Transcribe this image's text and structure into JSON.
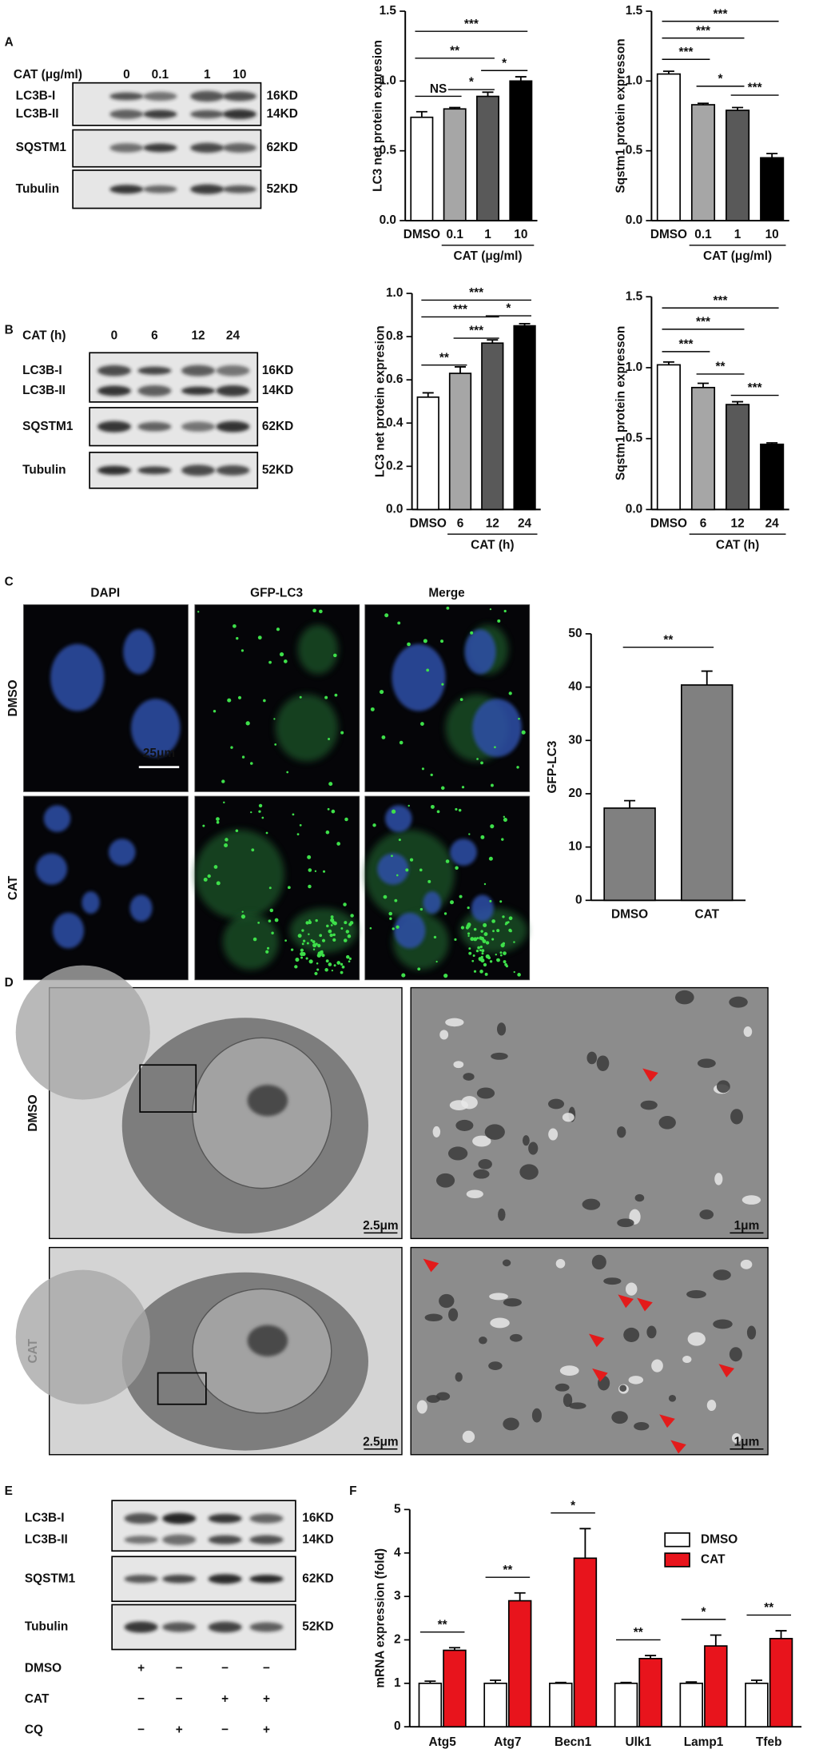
{
  "panel_labels": [
    "A",
    "B",
    "C",
    "D",
    "E",
    "F"
  ],
  "panel_a_blot": {
    "treatment_label": "CAT (μg/ml)",
    "lanes": [
      "0",
      "0.1",
      "1",
      "10"
    ],
    "rows": [
      {
        "labels": [
          "LC3B-I",
          "LC3B-II"
        ],
        "sizes": [
          "16KD",
          "14KD"
        ]
      },
      {
        "labels": [
          "SQSTM1"
        ],
        "sizes": [
          "62KD"
        ]
      },
      {
        "labels": [
          "Tubulin"
        ],
        "sizes": [
          "52KD"
        ]
      }
    ]
  },
  "panel_b_blot": {
    "treatment_label": "CAT (h)",
    "lanes": [
      "0",
      "6",
      "12",
      "24"
    ],
    "rows": [
      {
        "labels": [
          "LC3B-I",
          "LC3B-II"
        ],
        "sizes": [
          "16KD",
          "14KD"
        ]
      },
      {
        "labels": [
          "SQSTM1"
        ],
        "sizes": [
          "62KD"
        ]
      },
      {
        "labels": [
          "Tubulin"
        ],
        "sizes": [
          "52KD"
        ]
      }
    ]
  },
  "panel_c_images": {
    "columns": [
      "DAPI",
      "GFP-LC3",
      "Merge"
    ],
    "rows": [
      "DMSO",
      "CAT"
    ],
    "scale_bar": "25μm"
  },
  "panel_d_images": {
    "rows": [
      "DMSO",
      "CAT"
    ],
    "scale_bars": [
      "2.5μm",
      "1μm",
      "2.5μm",
      "1μm"
    ]
  },
  "panel_e_blot": {
    "rows": [
      {
        "labels": [
          "LC3B-I",
          "LC3B-II"
        ],
        "sizes": [
          "16KD",
          "14KD"
        ]
      },
      {
        "labels": [
          "SQSTM1"
        ],
        "sizes": [
          "62KD"
        ]
      },
      {
        "labels": [
          "Tubulin"
        ],
        "sizes": [
          "52KD"
        ]
      }
    ],
    "conditions": [
      {
        "name": "DMSO",
        "signs": [
          "+",
          "−",
          "−",
          "−"
        ]
      },
      {
        "name": "CAT",
        "signs": [
          "−",
          "−",
          "+",
          "+"
        ]
      },
      {
        "name": "CQ",
        "signs": [
          "−",
          "+",
          "−",
          "+"
        ]
      }
    ]
  },
  "chart_data": [
    {
      "type": "bar",
      "ylabel": "LC3 net protein expresion",
      "xlabel": "CAT (μg/ml)",
      "categories": [
        "DMSO",
        "0.1",
        "1",
        "10"
      ],
      "values": [
        0.74,
        0.8,
        0.89,
        1.0
      ],
      "errors": [
        0.04,
        0.01,
        0.03,
        0.03
      ],
      "colors": [
        "#ffffff",
        "#a6a6a6",
        "#595959",
        "#000000"
      ],
      "ylim": [
        0,
        1.5
      ],
      "yticks": [
        {
          "value": 0,
          "label": "0.0"
        },
        0.5,
        {
          "value": 1,
          "label": "1.0"
        },
        1.5
      ],
      "annotations": [
        "***",
        "**",
        "*",
        "*",
        "NS"
      ]
    },
    {
      "type": "bar",
      "ylabel": "Sqstm1 protein expresson",
      "xlabel": "CAT (μg/ml)",
      "categories": [
        "DMSO",
        "0.1",
        "1",
        "10"
      ],
      "values": [
        1.05,
        0.83,
        0.79,
        0.45
      ],
      "errors": [
        0.02,
        0.01,
        0.02,
        0.03
      ],
      "colors": [
        "#ffffff",
        "#a6a6a6",
        "#595959",
        "#000000"
      ],
      "ylim": [
        0,
        1.5
      ],
      "yticks": [
        {
          "value": 0,
          "label": "0.0"
        },
        0.5,
        {
          "value": 1,
          "label": "1.0"
        },
        1.5
      ],
      "annotations": [
        "***",
        "***",
        "***",
        "*",
        "***"
      ]
    },
    {
      "type": "bar",
      "ylabel": "LC3 net protein expresion",
      "xlabel": "CAT (h)",
      "categories": [
        "DMSO",
        "6",
        "12",
        "24"
      ],
      "values": [
        0.52,
        0.63,
        0.77,
        0.85
      ],
      "errors": [
        0.02,
        0.03,
        0.015,
        0.01
      ],
      "colors": [
        "#ffffff",
        "#a6a6a6",
        "#595959",
        "#000000"
      ],
      "ylim": [
        0,
        1
      ],
      "yticks": [
        {
          "value": 0,
          "label": "0.0"
        },
        0.2,
        0.4,
        0.6,
        0.8,
        {
          "value": 1,
          "label": "1.0"
        }
      ],
      "annotations": [
        "***",
        "***",
        "*",
        "***",
        "**"
      ]
    },
    {
      "type": "bar",
      "ylabel": "Sqstm1 protein expresson",
      "xlabel": "CAT (h)",
      "categories": [
        "DMSO",
        "6",
        "12",
        "24"
      ],
      "values": [
        1.02,
        0.86,
        0.74,
        0.46
      ],
      "errors": [
        0.02,
        0.03,
        0.02,
        0.01
      ],
      "colors": [
        "#ffffff",
        "#a6a6a6",
        "#595959",
        "#000000"
      ],
      "ylim": [
        0,
        1.5
      ],
      "yticks": [
        {
          "value": 0,
          "label": "0.0"
        },
        0.5,
        {
          "value": 1,
          "label": "1.0"
        },
        1.5
      ],
      "annotations": [
        "***",
        "***",
        "***",
        "**",
        "***"
      ]
    },
    {
      "type": "bar",
      "ylabel": "GFP-LC3",
      "categories": [
        "DMSO",
        "CAT"
      ],
      "values": [
        17.3,
        40.4
      ],
      "errors": [
        1.4,
        2.6
      ],
      "color": "#808080",
      "ylim": [
        0,
        50
      ],
      "yticks": [
        0,
        10,
        20,
        30,
        40,
        50
      ],
      "annotations": [
        "**"
      ]
    },
    {
      "type": "grouped_bar",
      "ylabel": "mRNA expression (fold)",
      "categories": [
        "Atg5",
        "Atg7",
        "Becn1",
        "Ulk1",
        "Lamp1",
        "Tfeb"
      ],
      "series": [
        {
          "name": "DMSO",
          "color": "#ffffff",
          "values": [
            1,
            1,
            1,
            1,
            1,
            1
          ],
          "errors": [
            0.05,
            0.07,
            0.02,
            0.02,
            0.03,
            0.07
          ]
        },
        {
          "name": "CAT",
          "color": "#e8141c",
          "values": [
            1.76,
            2.9,
            3.88,
            1.57,
            1.86,
            2.03
          ],
          "errors": [
            0.06,
            0.18,
            0.68,
            0.07,
            0.25,
            0.18
          ]
        }
      ],
      "ylim": [
        0,
        5
      ],
      "yticks": [
        0,
        1,
        2,
        3,
        4,
        5
      ],
      "legend": "upper right",
      "annotations": [
        "**",
        "**",
        "*",
        "**",
        "*",
        "**"
      ]
    }
  ]
}
